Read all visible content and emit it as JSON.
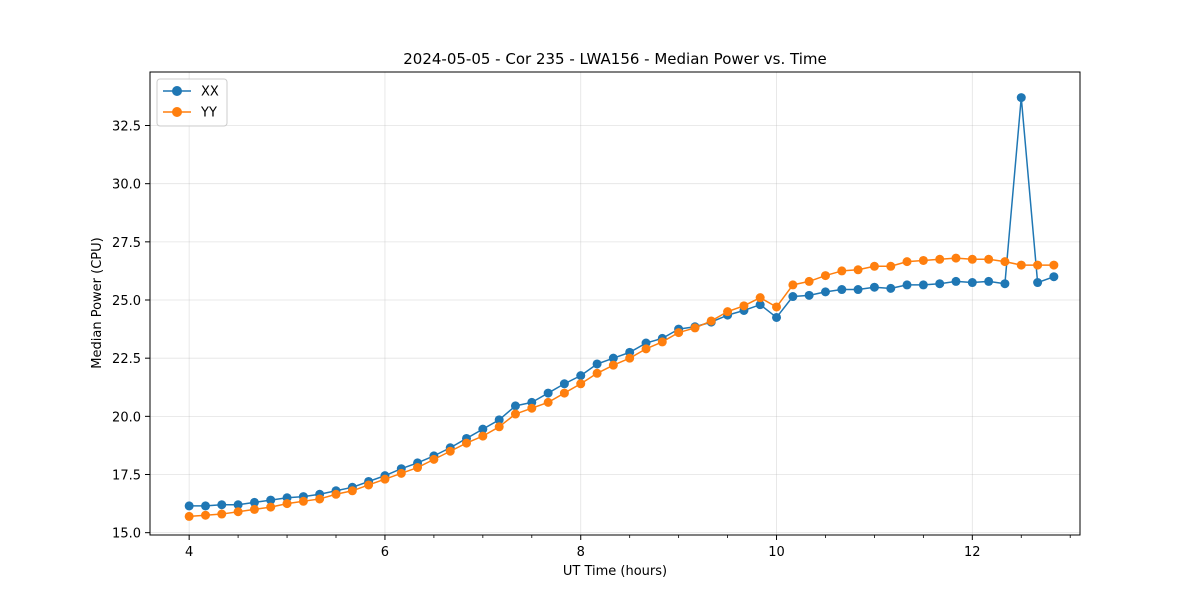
{
  "chart_data": {
    "type": "line",
    "title": "2024-05-05 - Cor 235 - LWA156 - Median Power vs. Time",
    "xlabel": "UT Time (hours)",
    "ylabel": "Median Power (CPU)",
    "xlim": [
      3.6,
      13.1
    ],
    "ylim": [
      14.9,
      34.8
    ],
    "grid": true,
    "legend_position": "top-left",
    "x_ticks": [
      4,
      6,
      8,
      10,
      12
    ],
    "x_tick_labels": [
      "4",
      "6",
      "8",
      "10",
      "12"
    ],
    "y_ticks": [
      15.0,
      17.5,
      20.0,
      22.5,
      25.0,
      27.5,
      30.0,
      32.5
    ],
    "y_tick_labels": [
      "15.0",
      "17.5",
      "20.0",
      "22.5",
      "25.0",
      "27.5",
      "30.0",
      "32.5"
    ],
    "series": [
      {
        "name": "XX",
        "color": "#1f77b4",
        "x": [
          4.0,
          4.167,
          4.333,
          4.5,
          4.667,
          4.833,
          5.0,
          5.167,
          5.333,
          5.5,
          5.667,
          5.833,
          6.0,
          6.167,
          6.333,
          6.5,
          6.667,
          6.833,
          7.0,
          7.167,
          7.333,
          7.5,
          7.667,
          7.833,
          8.0,
          8.167,
          8.333,
          8.5,
          8.667,
          8.833,
          9.0,
          9.167,
          9.333,
          9.5,
          9.667,
          9.833,
          10.0,
          10.167,
          10.333,
          10.5,
          10.667,
          10.833,
          11.0,
          11.167,
          11.333,
          11.5,
          11.667,
          11.833,
          12.0,
          12.167,
          12.333,
          12.5,
          12.667,
          12.833
        ],
        "values": [
          16.15,
          16.15,
          16.2,
          16.2,
          16.3,
          16.4,
          16.5,
          16.55,
          16.65,
          16.8,
          16.95,
          17.2,
          17.45,
          17.75,
          18.0,
          18.3,
          18.65,
          19.05,
          19.45,
          19.85,
          20.45,
          20.6,
          21.0,
          21.4,
          21.75,
          22.25,
          22.5,
          22.75,
          23.15,
          23.35,
          23.75,
          23.85,
          24.05,
          24.35,
          24.55,
          24.8,
          24.25,
          25.15,
          25.2,
          25.35,
          25.45,
          25.45,
          25.55,
          25.5,
          25.65,
          25.65,
          25.7,
          25.8,
          25.75,
          25.8,
          25.7,
          33.7,
          25.75,
          26.0
        ]
      },
      {
        "name": "YY",
        "color": "#ff7f0e",
        "x": [
          4.0,
          4.167,
          4.333,
          4.5,
          4.667,
          4.833,
          5.0,
          5.167,
          5.333,
          5.5,
          5.667,
          5.833,
          6.0,
          6.167,
          6.333,
          6.5,
          6.667,
          6.833,
          7.0,
          7.167,
          7.333,
          7.5,
          7.667,
          7.833,
          8.0,
          8.167,
          8.333,
          8.5,
          8.667,
          8.833,
          9.0,
          9.167,
          9.333,
          9.5,
          9.667,
          9.833,
          10.0,
          10.167,
          10.333,
          10.5,
          10.667,
          10.833,
          11.0,
          11.167,
          11.333,
          11.5,
          11.667,
          11.833,
          12.0,
          12.167,
          12.333,
          12.5,
          12.667,
          12.833
        ],
        "values": [
          15.7,
          15.75,
          15.8,
          15.9,
          16.0,
          16.1,
          16.25,
          16.35,
          16.45,
          16.65,
          16.8,
          17.05,
          17.3,
          17.55,
          17.8,
          18.15,
          18.5,
          18.85,
          19.15,
          19.55,
          20.1,
          20.35,
          20.6,
          21.0,
          21.4,
          21.85,
          22.2,
          22.5,
          22.9,
          23.2,
          23.6,
          23.8,
          24.1,
          24.5,
          24.75,
          25.1,
          24.7,
          25.65,
          25.8,
          26.05,
          26.25,
          26.3,
          26.45,
          26.45,
          26.65,
          26.7,
          26.75,
          26.8,
          26.75,
          26.75,
          26.65,
          26.5,
          26.5,
          26.5
        ]
      }
    ]
  }
}
